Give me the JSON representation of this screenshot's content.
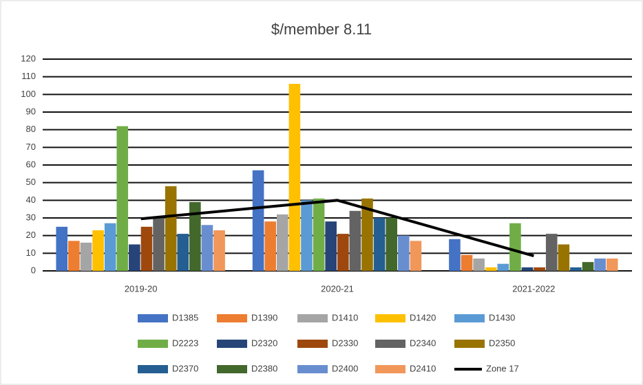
{
  "chart_data": {
    "type": "bar",
    "title": "$/member 8.11",
    "categories": [
      "2019-20",
      "2020-21",
      "2021-2022"
    ],
    "ylim": [
      0,
      120
    ],
    "yticks": [
      0,
      10,
      20,
      30,
      40,
      50,
      60,
      70,
      80,
      90,
      100,
      110,
      120
    ],
    "grid": true,
    "legend": "bottom",
    "series": [
      {
        "name": "D1385",
        "color": "#4472c4",
        "values": [
          25,
          57,
          18
        ]
      },
      {
        "name": "D1390",
        "color": "#ed7d31",
        "values": [
          17,
          28,
          9
        ]
      },
      {
        "name": "D1410",
        "color": "#a5a5a5",
        "values": [
          16,
          32,
          7
        ]
      },
      {
        "name": "D1420",
        "color": "#ffc000",
        "values": [
          23,
          106,
          2
        ]
      },
      {
        "name": "D1430",
        "color": "#5b9bd5",
        "values": [
          27,
          40,
          4
        ]
      },
      {
        "name": "D2223",
        "color": "#70ad47",
        "values": [
          82,
          41,
          27
        ]
      },
      {
        "name": "D2320",
        "color": "#264478",
        "values": [
          15,
          28,
          2
        ]
      },
      {
        "name": "D2330",
        "color": "#9e480e",
        "values": [
          25,
          21,
          2
        ]
      },
      {
        "name": "D2340",
        "color": "#636363",
        "values": [
          30,
          34,
          21
        ]
      },
      {
        "name": "D2350",
        "color": "#997300",
        "values": [
          48,
          41,
          15
        ]
      },
      {
        "name": "D2370",
        "color": "#255e91",
        "values": [
          21,
          30,
          2
        ]
      },
      {
        "name": "D2380",
        "color": "#43682b",
        "values": [
          39,
          30,
          5
        ]
      },
      {
        "name": "D2400",
        "color": "#698ed0",
        "values": [
          26,
          20,
          7
        ]
      },
      {
        "name": "D2410",
        "color": "#f1975a",
        "values": [
          23,
          17,
          7
        ]
      },
      {
        "name": "Zone 17",
        "color": "#000000",
        "type": "line",
        "values": [
          29.5,
          40,
          8.5
        ]
      }
    ]
  }
}
